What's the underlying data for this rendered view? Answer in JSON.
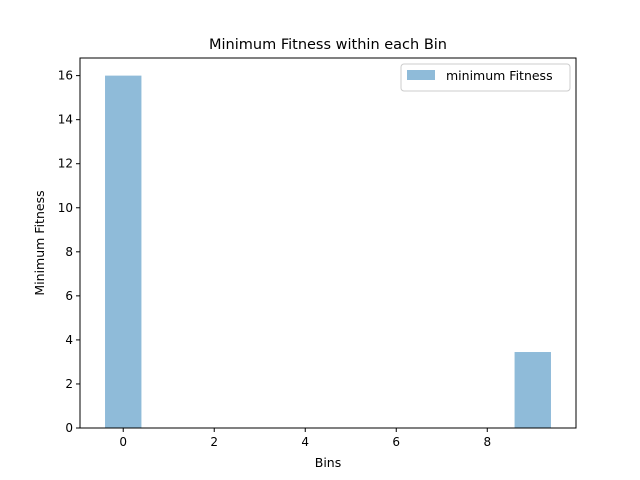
{
  "chart_data": {
    "type": "bar",
    "title": "Minimum Fitness within each Bin",
    "xlabel": "Bins",
    "ylabel": "Minimum Fitness",
    "x": [
      0,
      1,
      2,
      3,
      4,
      5,
      6,
      7,
      8,
      9
    ],
    "values": [
      16,
      0,
      0,
      0,
      0,
      0,
      0,
      0,
      0,
      3.45
    ],
    "bar_width": 0.8,
    "xlim": [
      -0.95,
      9.95
    ],
    "ylim": [
      0,
      16.8
    ],
    "xticks": [
      0,
      2,
      4,
      6,
      8
    ],
    "yticks": [
      0,
      2,
      4,
      6,
      8,
      10,
      12,
      14,
      16
    ],
    "grid": false,
    "legend": {
      "placement": "top-right",
      "entries": [
        {
          "label": "minimum Fitness",
          "color": "#8fbbd9"
        }
      ]
    },
    "series_color": "#8fbbd9"
  }
}
